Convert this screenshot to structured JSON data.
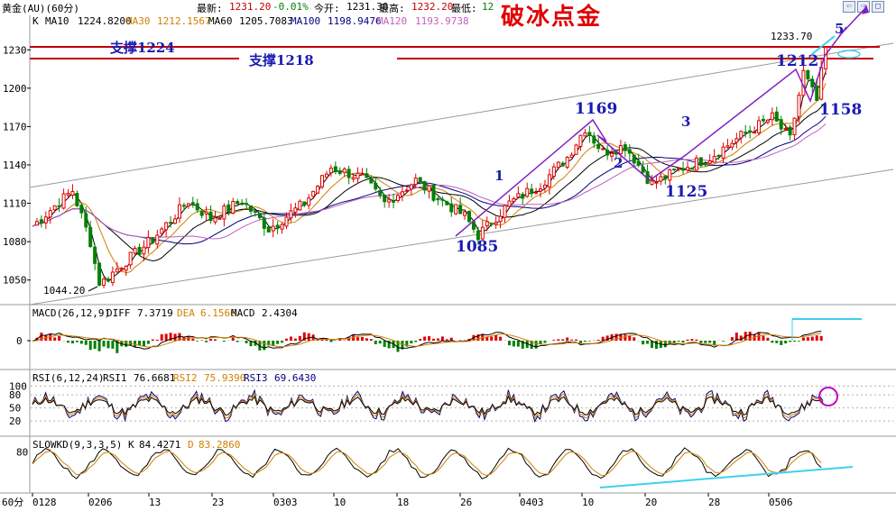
{
  "header": {
    "symbol": "黄金(AU)(60分)",
    "latest_label": "最新:",
    "latest_value": "1231.20",
    "change": "-0.01%",
    "open_label": "今开:",
    "open_value": "1231.30",
    "high_label": "最高:",
    "high_value": "1232.20",
    "low_label": "最低:",
    "low_value": "12",
    "brand": "破冰点金"
  },
  "window_buttons": [
    "⇦",
    "⇨",
    "□"
  ],
  "colors": {
    "up": "#e00000",
    "down": "#008000",
    "ma10": "#000000",
    "ma30": "#d08000",
    "ma60": "#000000",
    "ma100": "#000080",
    "ma120": "#c060c0",
    "annotation": "#1a1ab0",
    "trend": "#8020c0",
    "highlight": "#40d0f0",
    "support": "#c00000"
  },
  "chart_data": [
    {
      "type": "candlestick",
      "title": "K",
      "legend": [
        {
          "name": "MA10",
          "value": "1224.8200"
        },
        {
          "name": "MA30",
          "value": "1212.1567"
        },
        {
          "name": "MA60",
          "value": "1205.7083"
        },
        {
          "name": "MA100",
          "value": "1198.9476"
        },
        {
          "name": "MA120",
          "value": "1193.9738"
        }
      ],
      "y_ticks": [
        1230,
        1200,
        1170,
        1140,
        1110,
        1080,
        1050
      ],
      "ylim": [
        1035,
        1245
      ],
      "x_ticks": [
        "0128",
        "0206",
        "13",
        "23",
        "0303",
        "10",
        "18",
        "26",
        "0403",
        "10",
        "20",
        "28",
        "0506"
      ],
      "price_path": [
        {
          "x": 0,
          "y": 1092
        },
        {
          "x": 5,
          "y": 1108
        },
        {
          "x": 9,
          "y": 1120
        },
        {
          "x": 13,
          "y": 1080
        },
        {
          "x": 15,
          "y": 1046
        },
        {
          "x": 20,
          "y": 1062
        },
        {
          "x": 27,
          "y": 1082
        },
        {
          "x": 35,
          "y": 1112
        },
        {
          "x": 40,
          "y": 1098
        },
        {
          "x": 47,
          "y": 1112
        },
        {
          "x": 53,
          "y": 1090
        },
        {
          "x": 61,
          "y": 1110
        },
        {
          "x": 67,
          "y": 1138
        },
        {
          "x": 74,
          "y": 1130
        },
        {
          "x": 79,
          "y": 1110
        },
        {
          "x": 86,
          "y": 1128
        },
        {
          "x": 91,
          "y": 1114
        },
        {
          "x": 97,
          "y": 1100
        },
        {
          "x": 100,
          "y": 1085
        },
        {
          "x": 107,
          "y": 1110
        },
        {
          "x": 114,
          "y": 1125
        },
        {
          "x": 120,
          "y": 1146
        },
        {
          "x": 124,
          "y": 1169
        },
        {
          "x": 128,
          "y": 1150
        },
        {
          "x": 133,
          "y": 1155
        },
        {
          "x": 139,
          "y": 1125
        },
        {
          "x": 146,
          "y": 1138
        },
        {
          "x": 152,
          "y": 1146
        },
        {
          "x": 160,
          "y": 1165
        },
        {
          "x": 166,
          "y": 1177
        },
        {
          "x": 170,
          "y": 1160
        },
        {
          "x": 173,
          "y": 1212
        },
        {
          "x": 176,
          "y": 1190
        },
        {
          "x": 178,
          "y": 1233.7
        }
      ],
      "labels": [
        "1044.20",
        "1233.70"
      ],
      "support_lines": [
        {
          "label": "支撑1224",
          "value": 1224
        },
        {
          "label": "支撑1218",
          "value": 1218
        }
      ],
      "annotations": [
        {
          "text": "1169",
          "x": 124,
          "y": 1169
        },
        {
          "text": "1",
          "x": 106,
          "y": 1120
        },
        {
          "text": "2",
          "x": 131,
          "y": 1140
        },
        {
          "text": "3",
          "x": 147,
          "y": 1167
        },
        {
          "text": "1125",
          "x": 145,
          "y": 1123
        },
        {
          "text": "1085",
          "x": 101,
          "y": 1083
        },
        {
          "text": "1212",
          "x": 169,
          "y": 1212
        },
        {
          "text": "1158",
          "x": 179,
          "y": 1178
        },
        {
          "text": "5",
          "x": 180,
          "y": 1236
        }
      ]
    },
    {
      "type": "bar",
      "title": "MACD(26,12,9)",
      "legend": [
        {
          "name": "DIFF",
          "value": "7.3719"
        },
        {
          "name": "DEA",
          "value": "6.1566"
        },
        {
          "name": "MACD",
          "value": "2.4304"
        }
      ],
      "y_ticks": [
        0
      ]
    },
    {
      "type": "line",
      "title": "RSI(6,12,24)",
      "legend": [
        {
          "name": "RSI1",
          "value": "76.6681"
        },
        {
          "name": "RSI2",
          "value": "75.9390"
        },
        {
          "name": "RSI3",
          "value": "69.6430"
        }
      ],
      "y_ticks": [
        100,
        80,
        50,
        20
      ]
    },
    {
      "type": "line",
      "title": "SLOWKD(9,3,3,5)",
      "legend": [
        {
          "name": "K",
          "value": "84.4271"
        },
        {
          "name": "D",
          "value": "83.2860"
        }
      ],
      "y_ticks": [
        80
      ]
    }
  ],
  "footer": {
    "period": "60分"
  }
}
